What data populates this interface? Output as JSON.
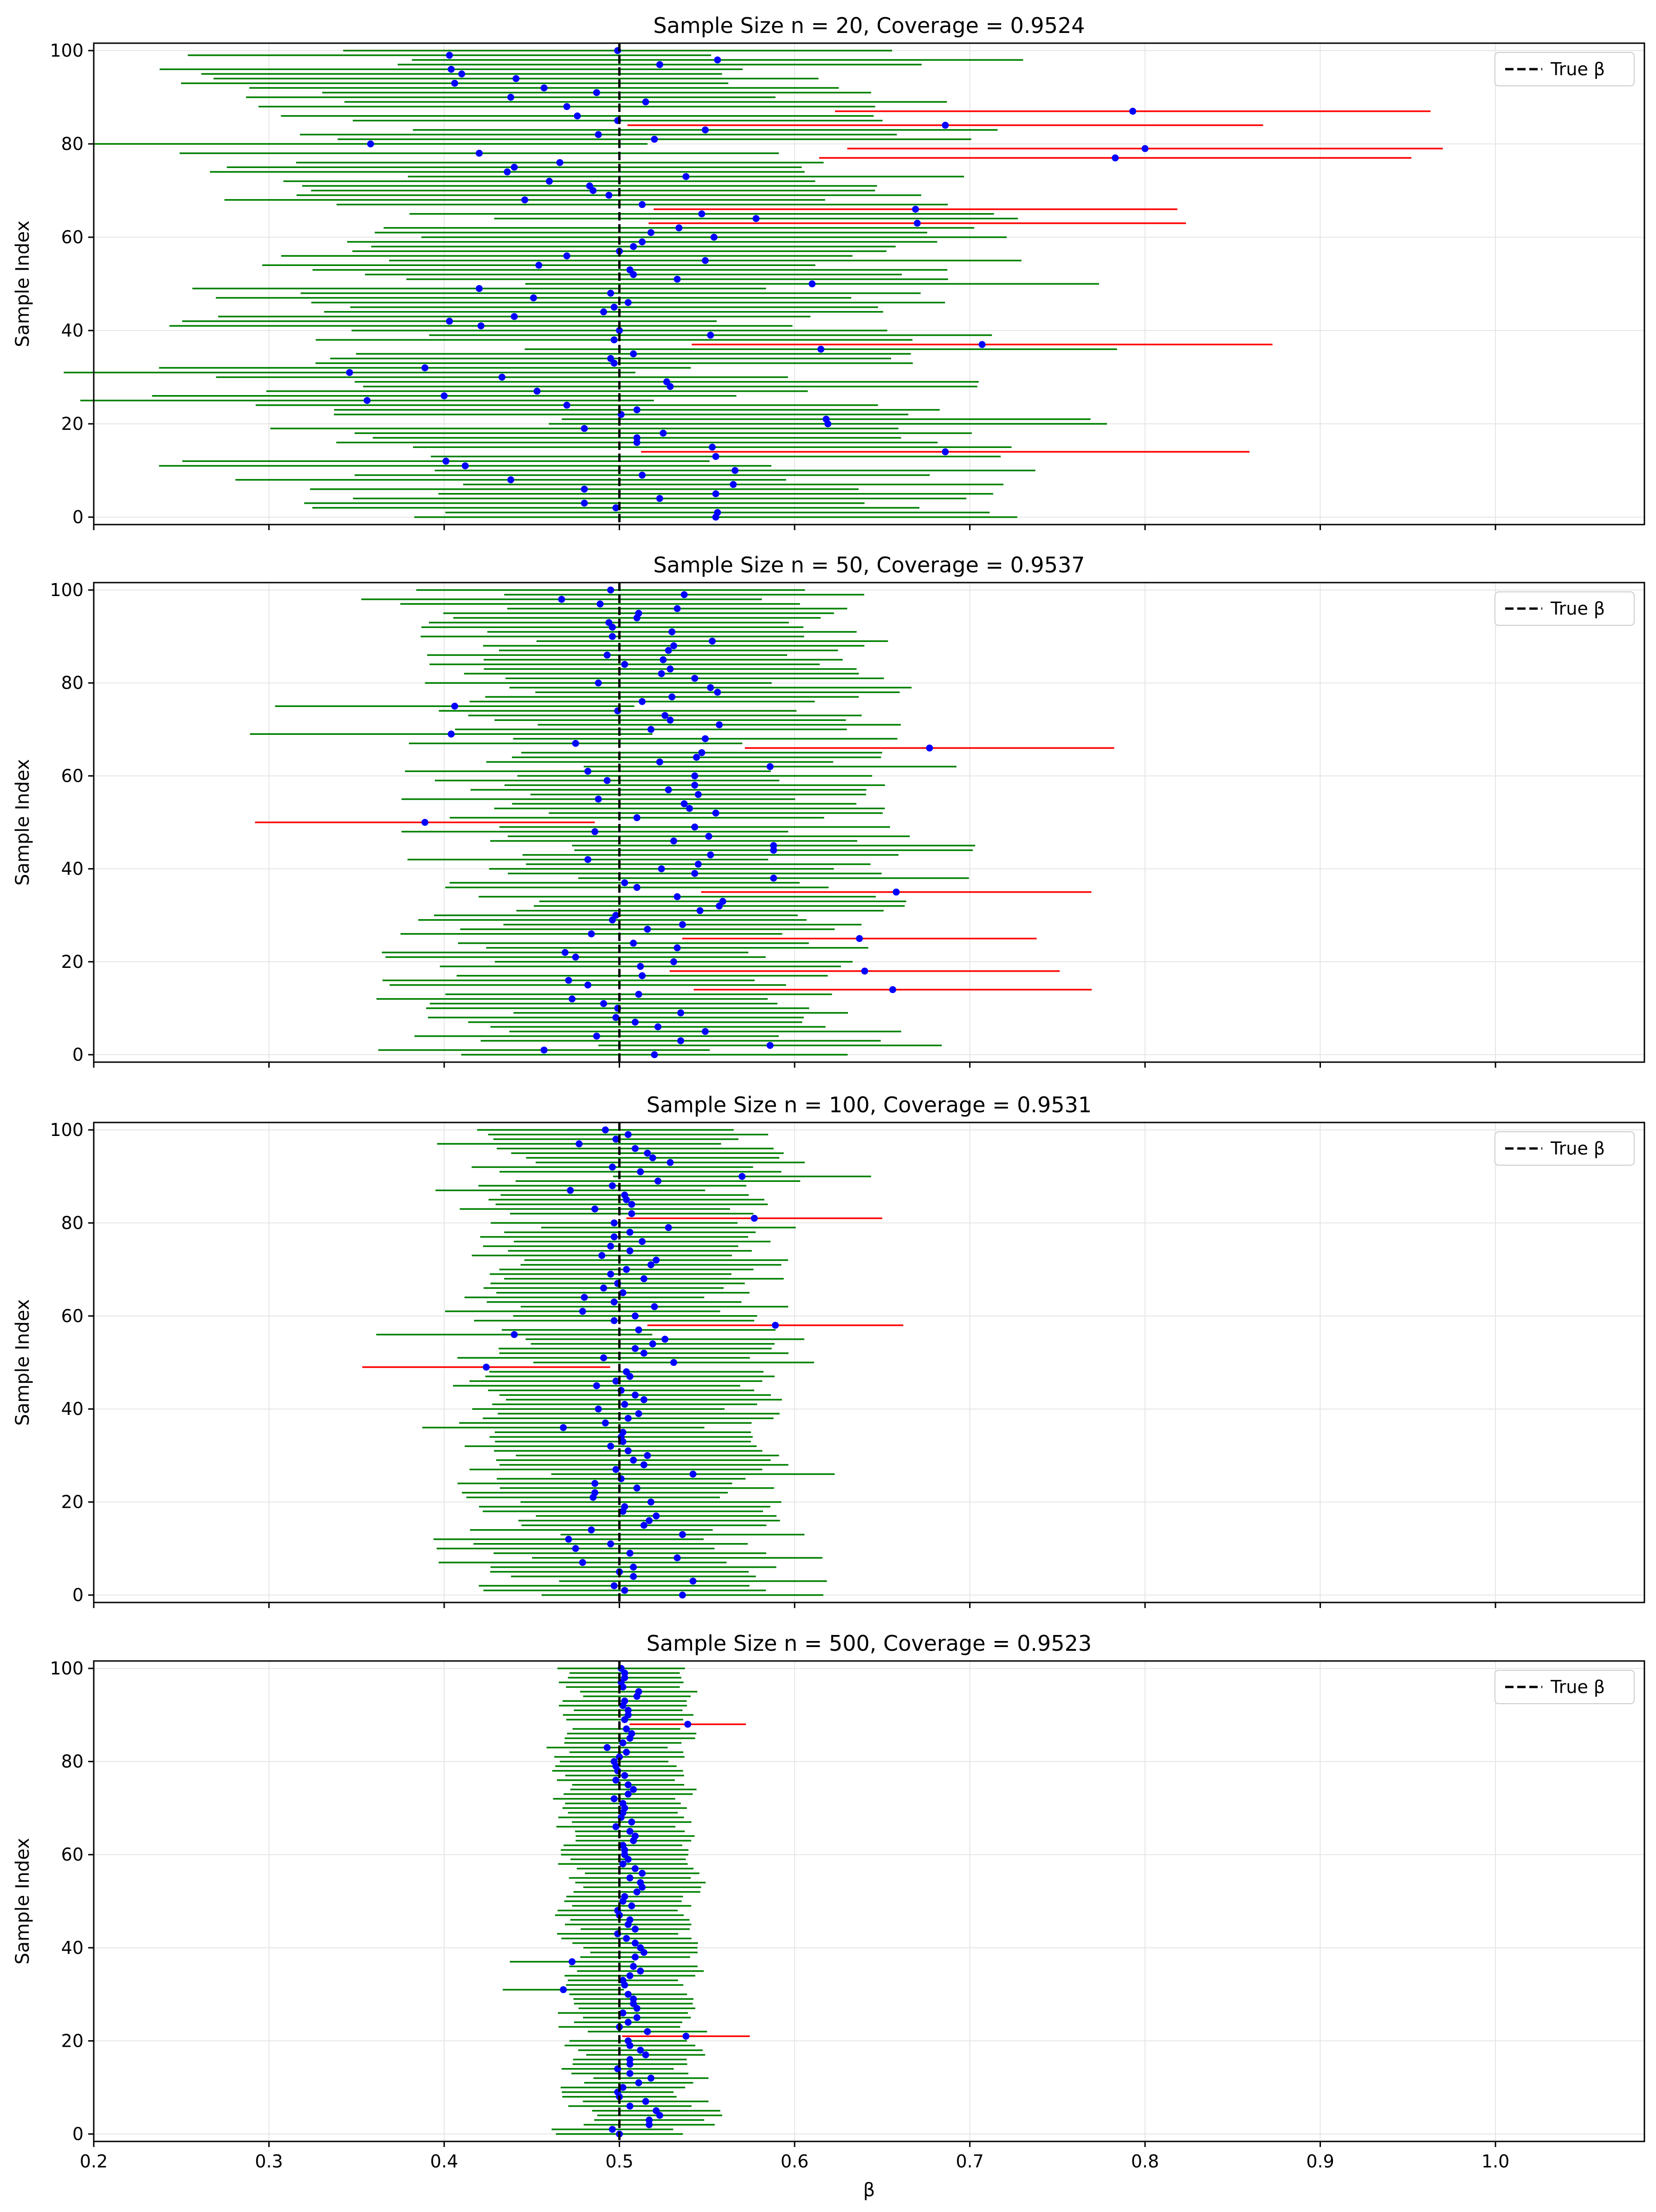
{
  "chart_data": [
    {
      "type": "interval",
      "title": "Sample Size n = 20, Coverage = 0.9524",
      "ylabel": "Sample Index",
      "legend": "True β",
      "legend_location": "top-right",
      "true_value": 0.5,
      "xlim": [
        0.2,
        1.085
      ],
      "ylim": [
        0,
        100
      ],
      "grid": true,
      "xticks": [
        "0.2",
        "0.3",
        "0.4",
        "0.5",
        "0.6",
        "0.7",
        "0.8",
        "0.9",
        "1.0"
      ],
      "yticks": [
        "0",
        "20",
        "40",
        "60",
        "80",
        "100"
      ],
      "halfwidth": 0.165,
      "estimates": [
        0.555,
        0.556,
        0.498,
        0.479,
        0.523,
        0.555,
        0.48,
        0.565,
        0.453,
        0.513,
        0.566,
        0.42,
        0.4,
        0.555,
        0.53,
        0.553,
        0.51,
        0.51,
        0.525,
        0.48,
        0.5,
        0.618,
        0.501,
        0.51,
        0.47,
        0.452,
        0.4,
        0.453,
        0.529,
        0.527,
        0.433,
        0.331,
        0.371,
        0.497,
        0.495,
        0.508,
        0.615,
        0.485,
        0.497,
        0.552,
        0.5,
        0.421,
        0.548,
        0.44,
        0.491,
        0.497,
        0.505,
        0.451,
        0.495,
        0.42,
        0.482,
        0.533,
        0.508,
        0.506,
        0.454,
        0.549,
        0.47,
        0.5,
        0.508,
        0.513,
        0.554,
        0.518,
        0.534,
        0.538,
        0.578,
        0.547,
        0.614,
        0.513,
        0.446,
        0.494,
        0.485,
        0.483,
        0.46,
        0.538,
        0.436,
        0.44,
        0.466,
        0.499,
        0.42,
        0.561,
        0.447,
        0.52,
        0.488,
        0.549,
        0.42,
        0.499,
        0.476,
        0.561,
        0.47,
        0.515,
        0.438,
        0.487,
        0.457,
        0.495,
        0.441,
        0.41,
        0.419,
        0.523,
        0.556,
        0.472,
        0.499
      ]
    },
    {
      "type": "interval",
      "title": "Sample Size n = 50, Coverage = 0.9537",
      "ylabel": "Sample Index",
      "legend": "True β",
      "legend_location": "top-right",
      "true_value": 0.5,
      "xlim": [
        0.2,
        1.085
      ],
      "ylim": [
        0,
        100
      ],
      "grid": true,
      "xticks": [
        "0.2",
        "0.3",
        "0.4",
        "0.5",
        "0.6",
        "0.7",
        "0.8",
        "0.9",
        "1.0"
      ],
      "yticks": [
        "0",
        "20",
        "40",
        "60",
        "80",
        "100"
      ],
      "halfwidth": 0.105,
      "estimates": [
        0.52,
        0.457,
        0.586,
        0.535,
        0.487,
        0.549,
        0.522,
        0.509,
        0.498,
        0.535,
        0.499,
        0.491,
        0.473,
        0.511,
        0.518,
        0.482,
        0.471,
        0.513,
        0.504,
        0.512,
        0.531,
        0.475,
        0.469,
        0.533,
        0.508,
        0.538,
        0.484,
        0.516,
        0.536,
        0.496,
        0.498,
        0.546,
        0.557,
        0.559,
        0.533,
        0.481,
        0.51,
        0.503,
        0.521,
        0.543,
        0.524,
        0.545,
        0.482,
        0.552,
        0.484,
        0.55,
        0.531,
        0.551,
        0.486,
        0.543,
        0.54,
        0.51,
        0.555,
        0.54,
        0.537,
        0.488,
        0.545,
        0.528,
        0.543,
        0.493,
        0.543,
        0.482,
        0.538,
        0.523,
        0.544,
        0.547,
        0.509,
        0.475,
        0.549,
        0.489,
        0.518,
        0.557,
        0.529,
        0.526,
        0.499,
        0.545,
        0.513,
        0.53,
        0.556,
        0.552,
        0.488,
        0.543,
        0.524,
        0.529,
        0.503,
        0.525,
        0.493,
        0.528,
        0.531,
        0.553,
        0.496,
        0.53,
        0.496,
        0.494,
        0.51,
        0.511,
        0.533,
        0.489,
        0.467,
        0.531,
        0.495
      ]
    },
    {
      "type": "interval",
      "title": "Sample Size n = 100, Coverage = 0.9531",
      "ylabel": "Sample Index",
      "legend": "True β",
      "legend_location": "top-right",
      "true_value": 0.5,
      "xlim": [
        0.2,
        1.085
      ],
      "ylim": [
        0,
        100
      ],
      "grid": true,
      "xticks": [
        "0.2",
        "0.3",
        "0.4",
        "0.5",
        "0.6",
        "0.7",
        "0.8",
        "0.9",
        "1.0"
      ],
      "yticks": [
        "0",
        "20",
        "40",
        "60",
        "80",
        "100"
      ],
      "halfwidth": 0.076,
      "estimates": [
        0.536,
        0.503,
        0.497,
        0.542,
        0.508,
        0.5,
        0.508,
        0.479,
        0.533,
        0.506,
        0.475,
        0.495,
        0.471,
        0.536,
        0.484,
        0.514,
        0.517,
        0.521,
        0.502,
        0.503,
        0.518,
        0.485,
        0.486,
        0.51,
        0.486,
        0.501,
        0.542,
        0.498,
        0.514,
        0.508,
        0.516,
        0.505,
        0.495,
        0.502,
        0.501,
        0.502,
        0.468,
        0.492,
        0.505,
        0.511,
        0.488,
        0.503,
        0.514,
        0.509,
        0.501,
        0.487,
        0.498,
        0.506,
        0.504,
        0.467,
        0.531,
        0.491,
        0.514,
        0.509,
        0.519,
        0.526,
        0.495,
        0.511,
        0.51,
        0.497,
        0.509,
        0.503,
        0.52,
        0.497,
        0.497,
        0.502,
        0.491,
        0.499,
        0.514,
        0.495,
        0.504,
        0.518,
        0.521,
        0.49,
        0.506,
        0.495,
        0.513,
        0.497,
        0.506,
        0.528,
        0.497,
        0.521,
        0.507,
        0.486,
        0.507,
        0.504,
        0.503,
        0.472,
        0.496,
        0.522,
        0.494,
        0.512,
        0.496,
        0.529,
        0.519,
        0.516,
        0.509,
        0.475,
        0.499,
        0.505,
        0.492
      ]
    },
    {
      "type": "interval",
      "title": "Sample Size n = 500, Coverage = 0.9523",
      "xlabel": "β",
      "ylabel": "Sample Index",
      "legend": "True β",
      "legend_location": "top-right",
      "true_value": 0.5,
      "xlim": [
        0.2,
        1.085
      ],
      "ylim": [
        0,
        100
      ],
      "grid": true,
      "xticks": [
        "0.2",
        "0.3",
        "0.4",
        "0.5",
        "0.6",
        "0.7",
        "0.8",
        "0.9",
        "1.0"
      ],
      "yticks": [
        "0",
        "20",
        "40",
        "60",
        "80",
        "100"
      ],
      "halfwidth": 0.034,
      "estimates": [
        0.5,
        0.496,
        0.517,
        0.517,
        0.523,
        0.521,
        0.506,
        0.515,
        0.5,
        0.499,
        0.502,
        0.511,
        0.518,
        0.506,
        0.499,
        0.506,
        0.506,
        0.515,
        0.512,
        0.506,
        0.505,
        0.527,
        0.516,
        0.5,
        0.505,
        0.51,
        0.502,
        0.51,
        0.508,
        0.508,
        0.505,
        0.502,
        0.503,
        0.502,
        0.506,
        0.512,
        0.508,
        0.513,
        0.509,
        0.514,
        0.512,
        0.509,
        0.504,
        0.499,
        0.509,
        0.505,
        0.506,
        0.5,
        0.499,
        0.507,
        0.502,
        0.503,
        0.51,
        0.513,
        0.512,
        0.506,
        0.513,
        0.509,
        0.502,
        0.505,
        0.503,
        0.503,
        0.502,
        0.508,
        0.509,
        0.506,
        0.498,
        0.507,
        0.501,
        0.502,
        0.503,
        0.502,
        0.497,
        0.505,
        0.508,
        0.505,
        0.498,
        0.503,
        0.499,
        0.498,
        0.497,
        0.5,
        0.504,
        0.493,
        0.502,
        0.506,
        0.507,
        0.504,
        0.539,
        0.503,
        0.505,
        0.505,
        0.502,
        0.503,
        0.51,
        0.511,
        0.502,
        0.501,
        0.503,
        0.503,
        0.501
      ],
      "overrides": {
        "21": 0.538,
        "31": 0.468,
        "37": 0.473,
        "88": 0.539
      }
    }
  ],
  "overrides": [
    {
      "3": 0.48,
      "8": 0.438,
      "11": 0.412,
      "12": 0.401,
      "14": 0.686,
      "20": 0.619,
      "25": 0.356,
      "31": 0.346,
      "32": 0.389,
      "37": 0.707,
      "42": 0.403,
      "50": 0.61,
      "66": 0.669,
      "63": 0.67,
      "77": 0.783,
      "79": 0.8,
      "80": 0.358,
      "84": 0.686,
      "87": 0.793,
      "93": 0.406,
      "96": 0.404,
      "99": 0.403
    },
    {
      "14": 0.656,
      "18": 0.64,
      "25": 0.637,
      "35": 0.658,
      "50": 0.389,
      "62": 0.586,
      "66": 0.677,
      "69": 0.404,
      "75": 0.406,
      "38": 0.588,
      "45": 0.588,
      "44": 0.588,
      "99": 0.537
    },
    {
      "49": 0.424,
      "56": 0.44,
      "58": 0.589,
      "64": 0.48,
      "61": 0.479,
      "81": 0.577,
      "90": 0.57,
      "98": 0.498,
      "97": 0.477
    }
  ],
  "colors": {
    "covered": "#008000",
    "missed": "#ff0000",
    "estimate": "#0000ff",
    "true_line": "#000000",
    "grid": "#e6e6e6"
  }
}
